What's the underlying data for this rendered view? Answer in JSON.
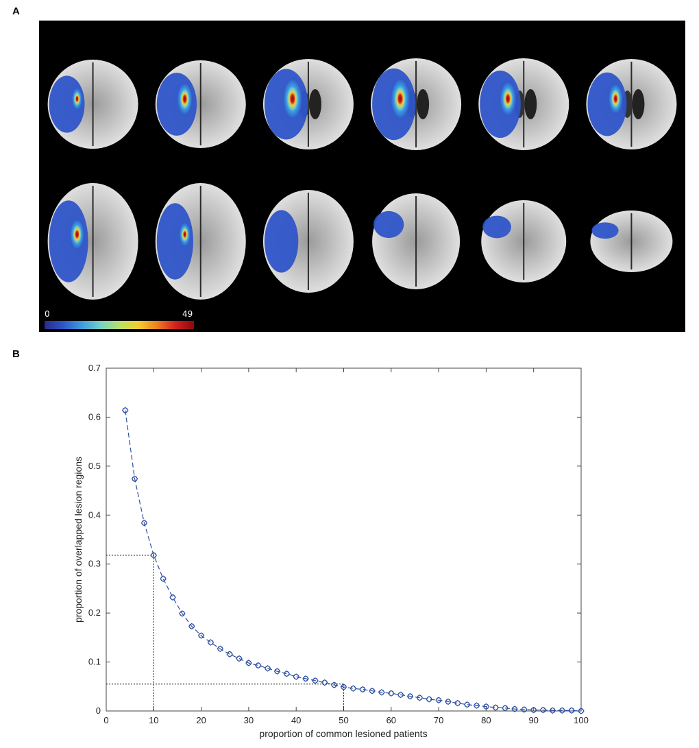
{
  "panels": {
    "a_label": "A",
    "b_label": "B"
  },
  "brain_panel": {
    "colorbar_min": "0",
    "colorbar_max": "49",
    "colormap": [
      "#2a2a8c",
      "#2f55c8",
      "#3f9be0",
      "#74d0c8",
      "#b8e06a",
      "#f0d030",
      "#f08020",
      "#d42020",
      "#8a0a0a"
    ],
    "slices_per_row": 6,
    "rows": 2
  },
  "chart_data": {
    "type": "line",
    "xlabel": "proportion of common lesioned patients",
    "ylabel": "proportion of overlapped lesion regions",
    "xlim": [
      0,
      100
    ],
    "ylim": [
      0,
      0.7
    ],
    "xticks": [
      "0",
      "10",
      "20",
      "30",
      "40",
      "50",
      "60",
      "70",
      "80",
      "90",
      "100"
    ],
    "yticks": [
      "0",
      "0.1",
      "0.2",
      "0.3",
      "0.4",
      "0.5",
      "0.6",
      "0.7"
    ],
    "grid": false,
    "series": [
      {
        "color": "#2d4fa0",
        "line_style": "dashed",
        "marker": "diamond-circle",
        "x": [
          4,
          6,
          8,
          10,
          12,
          14,
          16,
          18,
          20,
          22,
          24,
          26,
          28,
          30,
          32,
          34,
          36,
          38,
          40,
          42,
          44,
          46,
          48,
          50,
          52,
          54,
          56,
          58,
          60,
          62,
          64,
          66,
          68,
          70,
          72,
          74,
          76,
          78,
          80,
          82,
          84,
          86,
          88,
          90,
          92,
          94,
          96,
          98,
          100
        ],
        "y": [
          0.614,
          0.474,
          0.384,
          0.318,
          0.27,
          0.232,
          0.199,
          0.173,
          0.154,
          0.14,
          0.127,
          0.116,
          0.107,
          0.098,
          0.093,
          0.087,
          0.081,
          0.076,
          0.07,
          0.066,
          0.062,
          0.058,
          0.053,
          0.049,
          0.046,
          0.044,
          0.041,
          0.038,
          0.036,
          0.033,
          0.03,
          0.027,
          0.024,
          0.022,
          0.019,
          0.016,
          0.013,
          0.011,
          0.009,
          0.007,
          0.006,
          0.004,
          0.003,
          0.002,
          0.002,
          0.001,
          0.001,
          0.001,
          0.0
        ]
      }
    ],
    "reference_lines": [
      {
        "x": 10,
        "y": 0.318
      },
      {
        "x": 50,
        "y": 0.055
      }
    ]
  }
}
